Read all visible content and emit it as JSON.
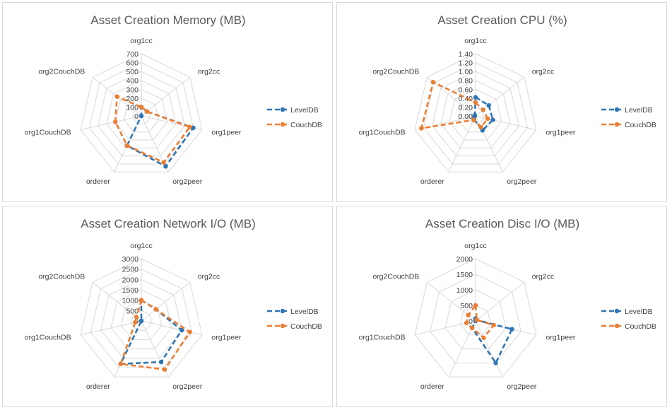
{
  "categories": [
    "org1cc",
    "org2cc",
    "org1peer",
    "org2peer",
    "orderer",
    "org1CouchDB",
    "org2CouchDB"
  ],
  "legend": [
    "LevelDB",
    "CouchDB"
  ],
  "colors": {
    "LevelDB": "#2e75b6",
    "CouchDB": "#ed7d31"
  },
  "chart_data": [
    {
      "type": "radar",
      "title": "Asset Creation Memory (MB)",
      "categories": [
        "org1cc",
        "org2cc",
        "org1peer",
        "org2peer",
        "orderer",
        "org1CouchDB",
        "org2CouchDB"
      ],
      "ticks": [
        "0",
        "100",
        "200",
        "300",
        "400",
        "500",
        "600",
        "700"
      ],
      "rlim": [
        0,
        700
      ],
      "series": [
        {
          "name": "LevelDB",
          "values": [
            100,
            80,
            600,
            630,
            370,
            0,
            0
          ]
        },
        {
          "name": "CouchDB",
          "values": [
            100,
            80,
            560,
            580,
            370,
            300,
            350
          ]
        }
      ],
      "legend_position": "right"
    },
    {
      "type": "radar",
      "title": "Asset Creation CPU (%)",
      "categories": [
        "org1cc",
        "org2cc",
        "org1peer",
        "org2peer",
        "orderer",
        "org1CouchDB",
        "org2CouchDB"
      ],
      "ticks": [
        "0.00",
        "0.20",
        "0.40",
        "0.60",
        "0.80",
        "1.00",
        "1.20",
        "1.40"
      ],
      "rlim": [
        0,
        1.4
      ],
      "series": [
        {
          "name": "LevelDB",
          "values": [
            0.42,
            0.38,
            0.4,
            0.36,
            0.08,
            0.02,
            0.02
          ]
        },
        {
          "name": "CouchDB",
          "values": [
            0.3,
            0.22,
            0.28,
            0.28,
            0.1,
            1.25,
            1.22
          ]
        }
      ],
      "legend_position": "right"
    },
    {
      "type": "radar",
      "title": "Asset Creation Network I/O (MB)",
      "categories": [
        "org1cc",
        "org2cc",
        "org1peer",
        "org2peer",
        "orderer",
        "org1CouchDB",
        "org2CouchDB"
      ],
      "ticks": [
        "0",
        "500",
        "1000",
        "1500",
        "2000",
        "2500",
        "3000"
      ],
      "rlim": [
        0,
        3000
      ],
      "series": [
        {
          "name": "LevelDB",
          "values": [
            1000,
            900,
            2000,
            2200,
            2300,
            0,
            0
          ]
        },
        {
          "name": "CouchDB",
          "values": [
            1000,
            900,
            2400,
            2600,
            2300,
            300,
            300
          ]
        }
      ],
      "legend_position": "right"
    },
    {
      "type": "radar",
      "title": "Asset Creation Disc I/O (MB)",
      "categories": [
        "org1cc",
        "org2cc",
        "org1peer",
        "org2peer",
        "orderer",
        "org1CouchDB",
        "org2CouchDB"
      ],
      "ticks": [
        "0",
        "500",
        "1000",
        "1500",
        "2000"
      ],
      "rlim": [
        0,
        2000
      ],
      "series": [
        {
          "name": "LevelDB",
          "values": [
            80,
            50,
            1200,
            1500,
            250,
            0,
            0
          ]
        },
        {
          "name": "CouchDB",
          "values": [
            500,
            50,
            600,
            600,
            250,
            300,
            300
          ]
        }
      ],
      "legend_position": "right"
    }
  ]
}
